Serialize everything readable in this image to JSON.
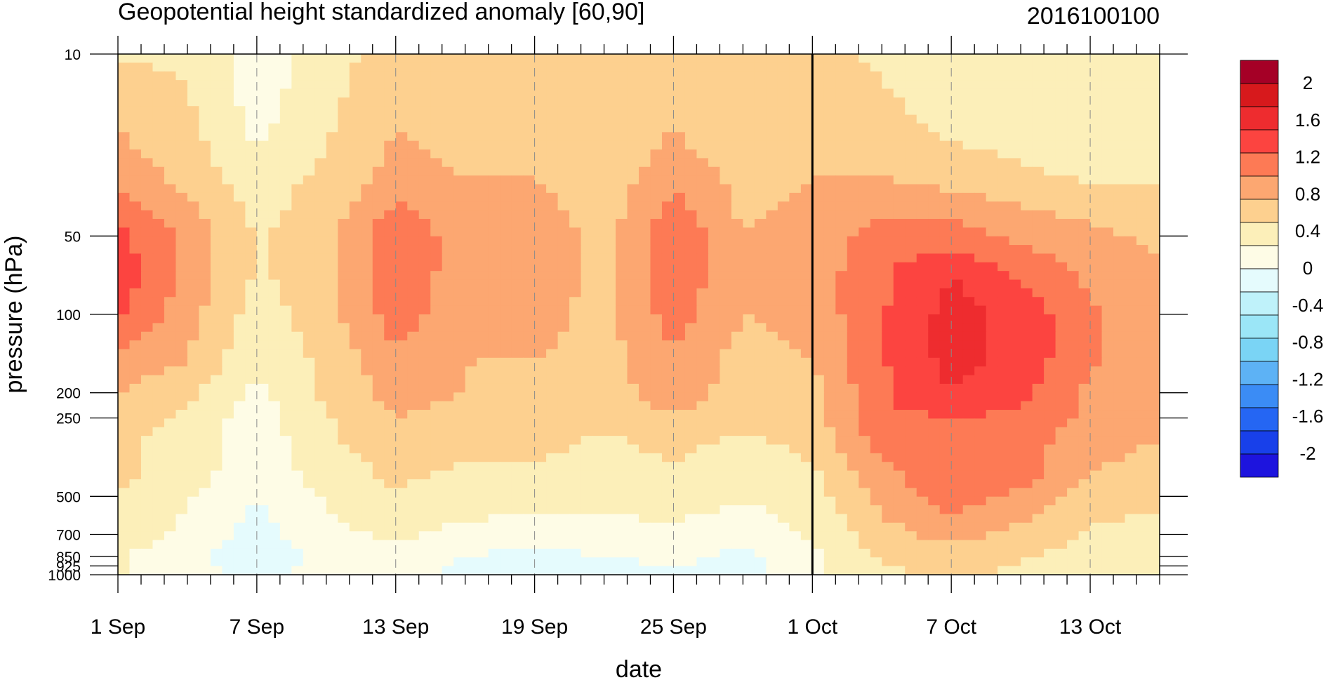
{
  "chart_data": {
    "type": "heatmap",
    "title": "Geopotential height standardized anomaly [60,90]",
    "date_label": "2016100100",
    "xlabel": "date",
    "ylabel": "pressure (hPa)",
    "x_ticks": [
      "1 Sep",
      "7 Sep",
      "13 Sep",
      "19 Sep",
      "25 Sep",
      "1 Oct",
      "7 Oct",
      "13 Oct"
    ],
    "x_tick_days": [
      0,
      6,
      12,
      18,
      24,
      30,
      36,
      42
    ],
    "x_range_days": [
      0,
      45
    ],
    "current_date_marker_day": 30,
    "y_ticks": [
      "10",
      "50",
      "100",
      "200",
      "250",
      "500",
      "700",
      "850",
      "925",
      "1000"
    ],
    "y_tick_values": [
      10,
      50,
      100,
      200,
      250,
      500,
      700,
      850,
      925,
      1000
    ],
    "y_scale": "log",
    "y_reversed": true,
    "colorbar": {
      "labels": [
        "2",
        "1.6",
        "1.2",
        "0.8",
        "0.4",
        "0",
        "-0.4",
        "-0.8",
        "-1.2",
        "-1.6",
        "-2"
      ],
      "colors": [
        "#a50026",
        "#d7191c",
        "#ee2c2f",
        "#fc4440",
        "#fd7a55",
        "#fca771",
        "#fdd08f",
        "#fcefb9",
        "#fefce6",
        "#e5fbfd",
        "#bff2fa",
        "#9be6f7",
        "#7ad4f5",
        "#5db2f5",
        "#3b8cf5",
        "#2566f3",
        "#1840ea",
        "#1d14de"
      ]
    },
    "columns_day": [
      0,
      3,
      6,
      9,
      12,
      15,
      18,
      21,
      24,
      27,
      30,
      33,
      36,
      39,
      42,
      45
    ],
    "rows_hPa": [
      10,
      20,
      30,
      50,
      70,
      100,
      150,
      200,
      250,
      300,
      400,
      500,
      700,
      850,
      925,
      1000
    ],
    "values": [
      [
        0.5,
        0.5,
        0.1,
        0.4,
        0.7,
        0.7,
        0.7,
        0.6,
        0.7,
        0.6,
        0.6,
        0.5,
        0.4,
        0.3,
        0.3,
        0.3
      ],
      [
        0.8,
        0.6,
        0.2,
        0.5,
        0.8,
        0.7,
        0.7,
        0.6,
        0.8,
        0.6,
        0.7,
        0.6,
        0.5,
        0.4,
        0.3,
        0.3
      ],
      [
        1.0,
        0.7,
        0.4,
        0.6,
        0.9,
        0.8,
        0.8,
        0.6,
        1.0,
        0.7,
        0.8,
        0.8,
        0.7,
        0.6,
        0.5,
        0.5
      ],
      [
        1.4,
        1.0,
        0.5,
        0.7,
        1.3,
        0.9,
        1.0,
        0.7,
        1.3,
        0.8,
        0.9,
        1.2,
        1.2,
        1.0,
        0.9,
        0.7
      ],
      [
        1.5,
        1.0,
        0.5,
        0.7,
        1.3,
        0.9,
        1.0,
        0.7,
        1.3,
        0.8,
        0.9,
        1.3,
        1.6,
        1.3,
        1.0,
        0.9
      ],
      [
        1.4,
        0.9,
        0.4,
        0.7,
        1.2,
        0.9,
        0.9,
        0.7,
        1.2,
        0.8,
        0.9,
        1.3,
        1.7,
        1.5,
        1.1,
        0.9
      ],
      [
        1.0,
        0.8,
        0.3,
        0.6,
        1.0,
        0.8,
        0.8,
        0.7,
        1.0,
        0.7,
        0.8,
        1.3,
        1.7,
        1.5,
        1.1,
        0.8
      ],
      [
        0.8,
        0.6,
        0.2,
        0.6,
        0.9,
        0.8,
        0.7,
        0.7,
        0.9,
        0.7,
        0.7,
        1.3,
        1.6,
        1.4,
        1.0,
        0.8
      ],
      [
        0.7,
        0.5,
        0.1,
        0.5,
        0.8,
        0.7,
        0.7,
        0.6,
        0.8,
        0.6,
        0.7,
        1.3,
        1.3,
        1.3,
        1.0,
        0.8
      ],
      [
        0.6,
        0.4,
        0.1,
        0.5,
        0.7,
        0.6,
        0.6,
        0.5,
        0.6,
        0.5,
        0.6,
        1.2,
        1.3,
        1.2,
        0.9,
        0.8
      ],
      [
        0.6,
        0.4,
        0.1,
        0.4,
        0.6,
        0.5,
        0.5,
        0.5,
        0.5,
        0.4,
        0.5,
        1.0,
        1.3,
        1.2,
        0.8,
        0.7
      ],
      [
        0.5,
        0.3,
        0.0,
        0.3,
        0.5,
        0.4,
        0.4,
        0.3,
        0.4,
        0.3,
        0.4,
        0.9,
        1.2,
        1.0,
        0.7,
        0.6
      ],
      [
        0.4,
        0.2,
        -0.1,
        0.2,
        0.3,
        0.2,
        0.1,
        0.2,
        0.2,
        0.1,
        0.3,
        0.7,
        0.9,
        0.7,
        0.5,
        0.4
      ],
      [
        0.3,
        0.1,
        -0.2,
        0.1,
        0.2,
        0.0,
        -0.1,
        0.0,
        0.1,
        -0.1,
        0.2,
        0.6,
        0.7,
        0.6,
        0.4,
        0.3
      ],
      [
        0.3,
        0.1,
        -0.1,
        0.1,
        0.2,
        -0.1,
        -0.2,
        -0.1,
        0.0,
        -0.1,
        0.2,
        0.5,
        0.6,
        0.5,
        0.4,
        0.3
      ],
      [
        0.3,
        0.1,
        -0.1,
        0.1,
        0.2,
        -0.1,
        -0.2,
        -0.2,
        0.0,
        -0.1,
        0.2,
        0.5,
        0.6,
        0.5,
        0.4,
        0.3
      ]
    ]
  }
}
